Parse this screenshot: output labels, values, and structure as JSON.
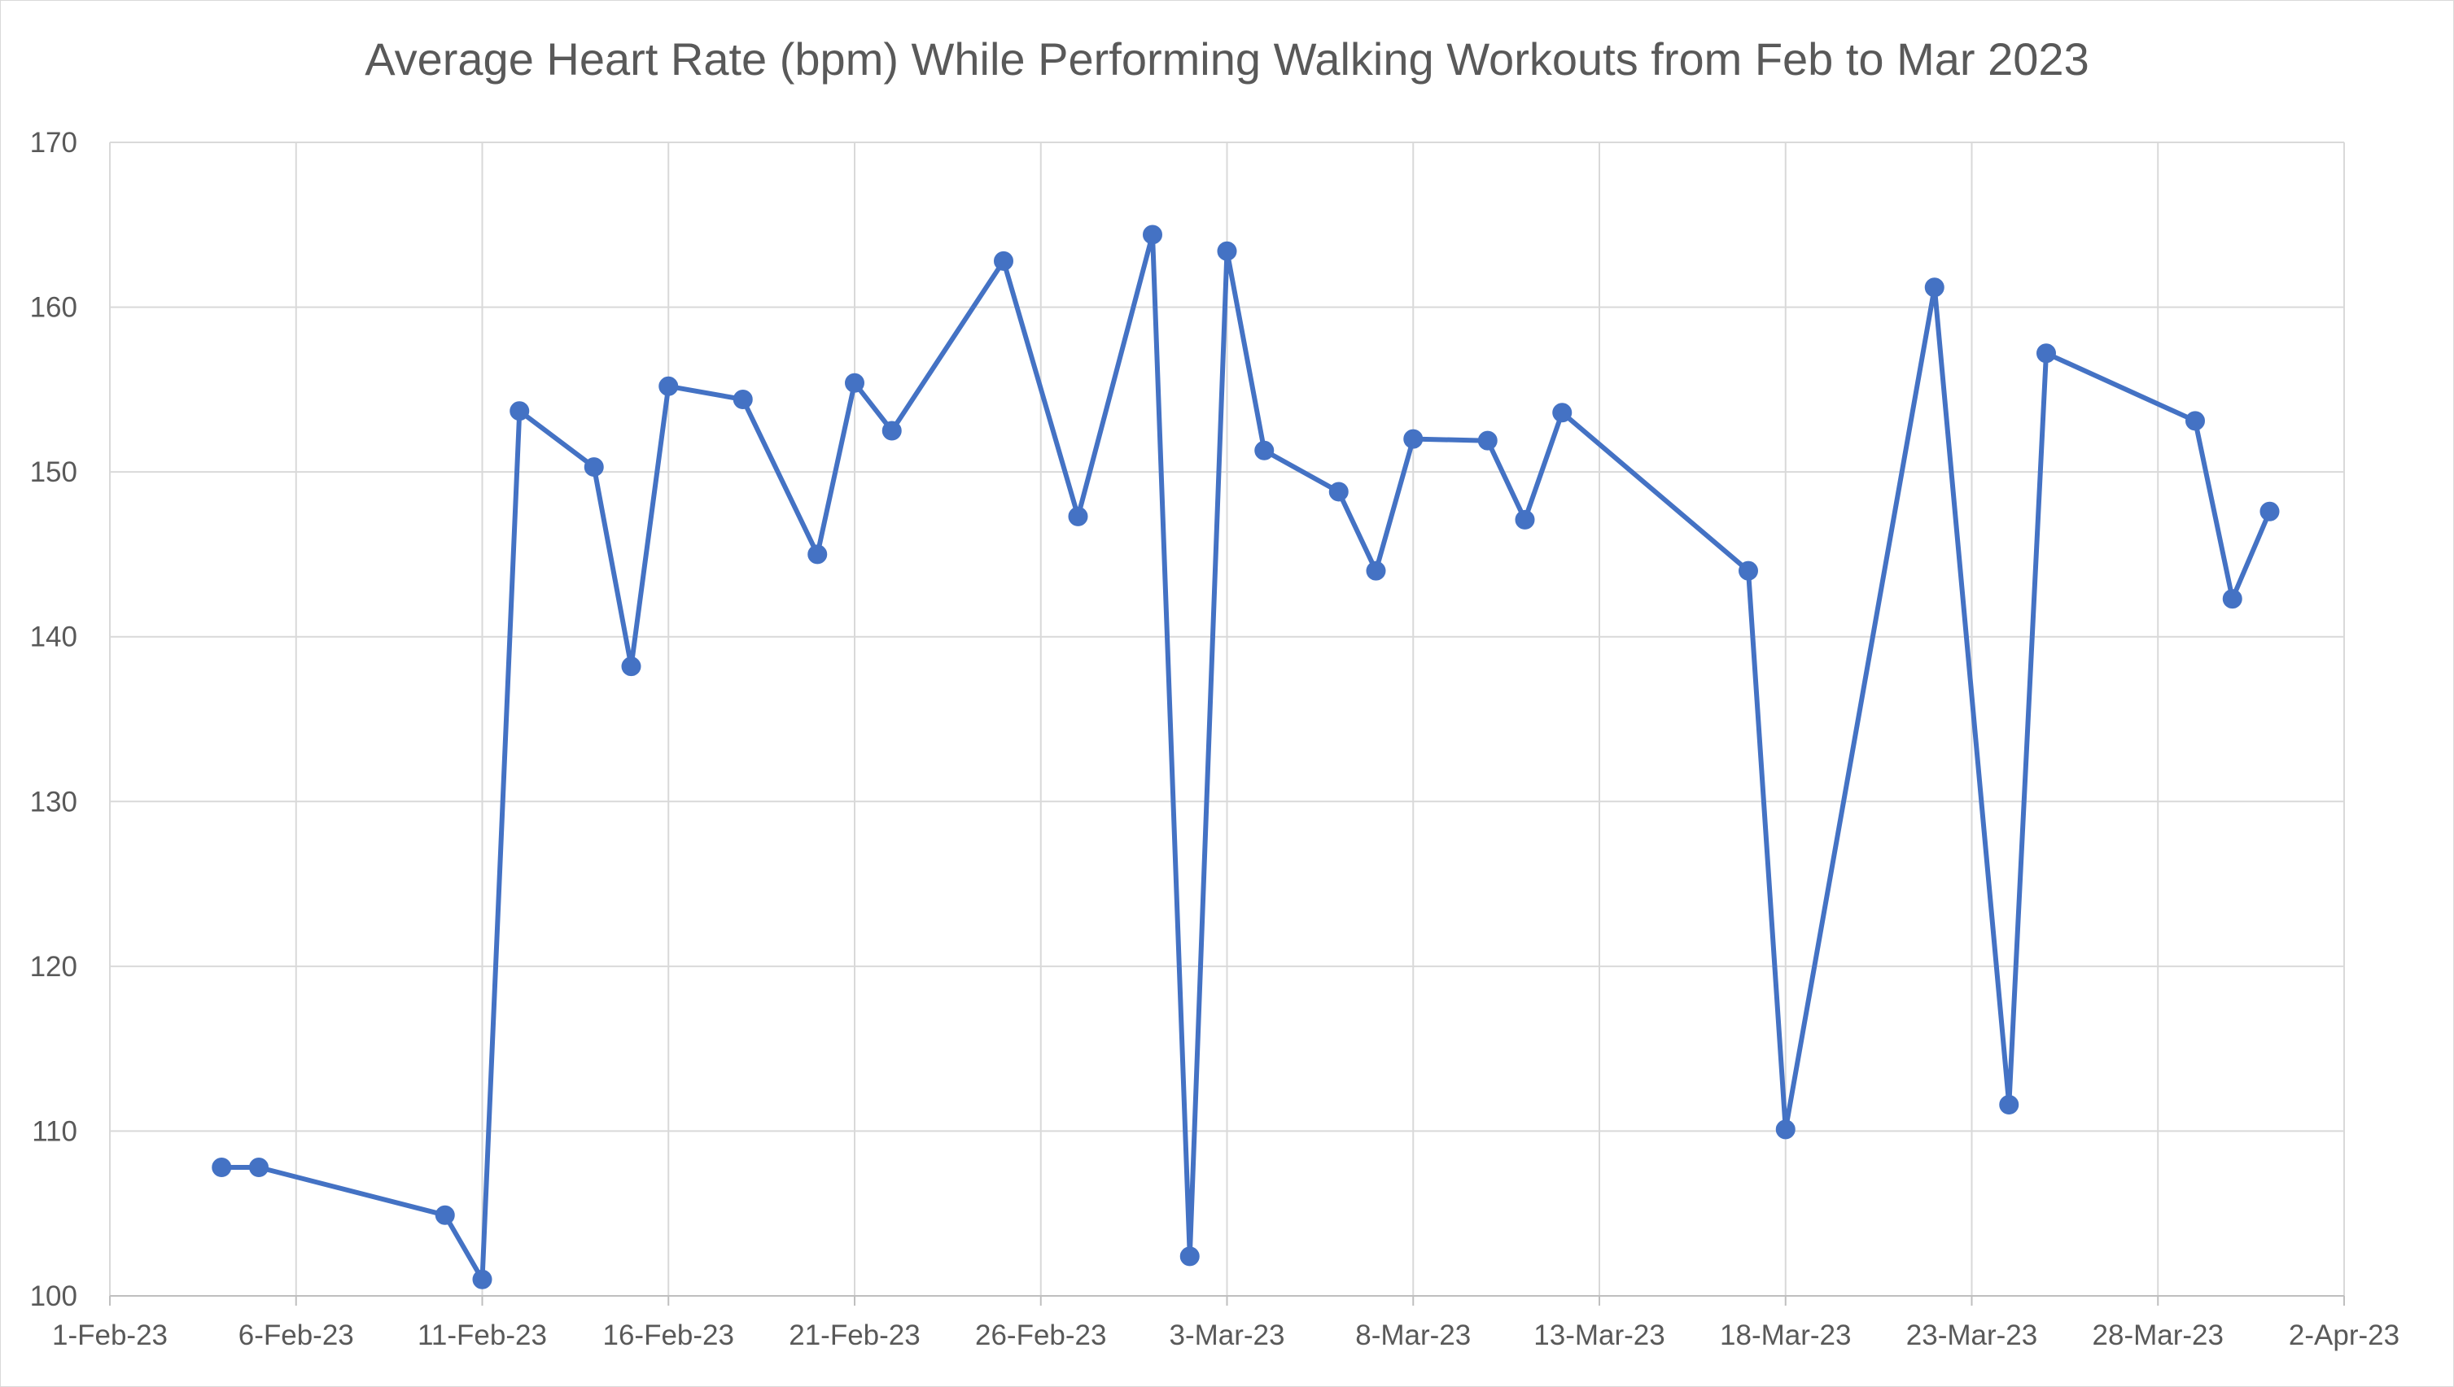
{
  "chart_data": {
    "type": "line",
    "title": "Average Heart Rate (bpm) While Performing Walking Workouts from Feb to Mar 2023",
    "xlabel": "",
    "ylabel": "",
    "xlim": [
      "2023-02-01",
      "2023-04-02"
    ],
    "ylim": [
      100,
      170
    ],
    "y_ticks": [
      100,
      110,
      120,
      130,
      140,
      150,
      160,
      170
    ],
    "x_ticks": [
      {
        "date": "2023-02-01",
        "label": "1-Feb-23"
      },
      {
        "date": "2023-02-06",
        "label": "6-Feb-23"
      },
      {
        "date": "2023-02-11",
        "label": "11-Feb-23"
      },
      {
        "date": "2023-02-16",
        "label": "16-Feb-23"
      },
      {
        "date": "2023-02-21",
        "label": "21-Feb-23"
      },
      {
        "date": "2023-02-26",
        "label": "26-Feb-23"
      },
      {
        "date": "2023-03-03",
        "label": "3-Mar-23"
      },
      {
        "date": "2023-03-08",
        "label": "8-Mar-23"
      },
      {
        "date": "2023-03-13",
        "label": "13-Mar-23"
      },
      {
        "date": "2023-03-18",
        "label": "18-Mar-23"
      },
      {
        "date": "2023-03-23",
        "label": "23-Mar-23"
      },
      {
        "date": "2023-03-28",
        "label": "28-Mar-23"
      },
      {
        "date": "2023-04-02",
        "label": "2-Apr-23"
      }
    ],
    "grid": true,
    "legend": "none",
    "series": [
      {
        "color": "#4472c4",
        "marker": "circle",
        "points": [
          {
            "x": "2023-02-04",
            "y": 107.8
          },
          {
            "x": "2023-02-05",
            "y": 107.8
          },
          {
            "x": "2023-02-10",
            "y": 104.9
          },
          {
            "x": "2023-02-11",
            "y": 101.0
          },
          {
            "x": "2023-02-12",
            "y": 153.7
          },
          {
            "x": "2023-02-14",
            "y": 150.3
          },
          {
            "x": "2023-02-15",
            "y": 138.2
          },
          {
            "x": "2023-02-16",
            "y": 155.2
          },
          {
            "x": "2023-02-18",
            "y": 154.4
          },
          {
            "x": "2023-02-20",
            "y": 145.0
          },
          {
            "x": "2023-02-21",
            "y": 155.4
          },
          {
            "x": "2023-02-22",
            "y": 152.5
          },
          {
            "x": "2023-02-25",
            "y": 162.8
          },
          {
            "x": "2023-02-27",
            "y": 147.3
          },
          {
            "x": "2023-03-01",
            "y": 164.4
          },
          {
            "x": "2023-03-02",
            "y": 102.4
          },
          {
            "x": "2023-03-03",
            "y": 163.4
          },
          {
            "x": "2023-03-04",
            "y": 151.3
          },
          {
            "x": "2023-03-06",
            "y": 148.8
          },
          {
            "x": "2023-03-07",
            "y": 144.0
          },
          {
            "x": "2023-03-08",
            "y": 152.0
          },
          {
            "x": "2023-03-10",
            "y": 151.9
          },
          {
            "x": "2023-03-11",
            "y": 147.1
          },
          {
            "x": "2023-03-12",
            "y": 153.6
          },
          {
            "x": "2023-03-17",
            "y": 144.0
          },
          {
            "x": "2023-03-18",
            "y": 110.1
          },
          {
            "x": "2023-03-22",
            "y": 161.2
          },
          {
            "x": "2023-03-24",
            "y": 111.6
          },
          {
            "x": "2023-03-25",
            "y": 157.2
          },
          {
            "x": "2023-03-29",
            "y": 153.1
          },
          {
            "x": "2023-03-30",
            "y": 142.3
          },
          {
            "x": "2023-03-31",
            "y": 147.6
          }
        ]
      }
    ]
  }
}
